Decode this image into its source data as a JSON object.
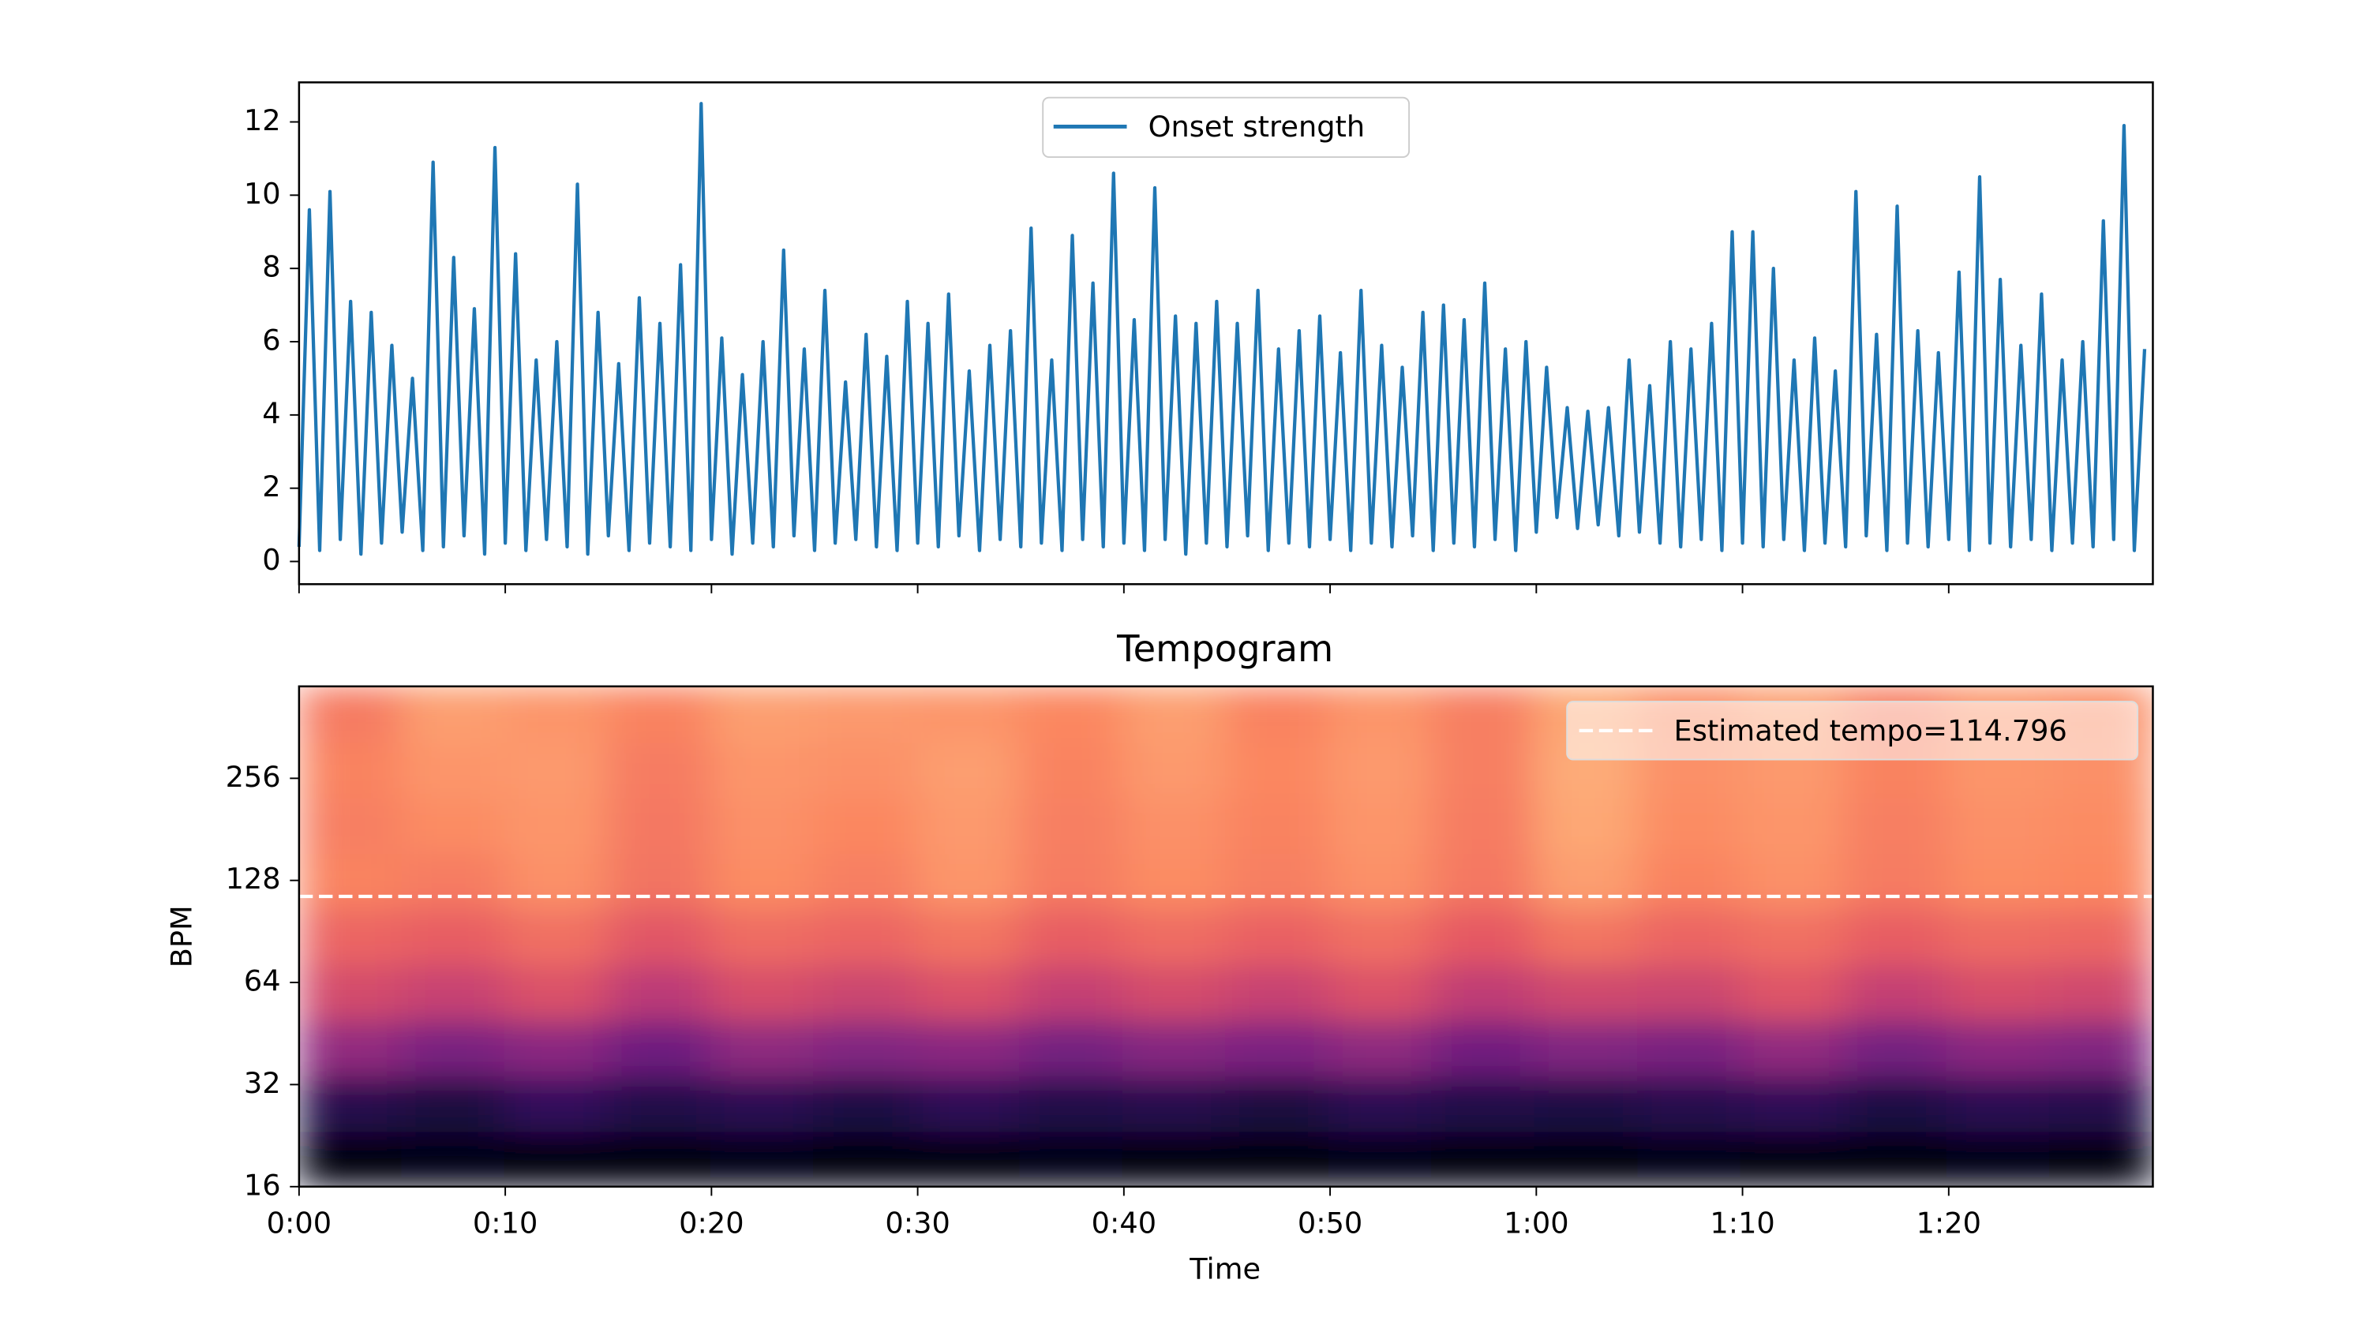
{
  "chart_data": [
    {
      "type": "line",
      "x": [
        0,
        0.5,
        1,
        1.5,
        2,
        2.5,
        3,
        3.5,
        4,
        4.5,
        5,
        5.5,
        6,
        6.5,
        7,
        7.5,
        8,
        8.5,
        9,
        9.5,
        10,
        10.5,
        11,
        11.5,
        12,
        12.5,
        13,
        13.5,
        14,
        14.5,
        15,
        15.5,
        16,
        16.5,
        17,
        17.5,
        18,
        18.5,
        19,
        19.5,
        20,
        20.5,
        21,
        21.5,
        22,
        22.5,
        23,
        23.5,
        24,
        24.5,
        25,
        25.5,
        26,
        26.5,
        27,
        27.5,
        28,
        28.5,
        29,
        29.5,
        30,
        30.5,
        31,
        31.5,
        32,
        32.5,
        33,
        33.5,
        34,
        34.5,
        35,
        35.5,
        36,
        36.5,
        37,
        37.5,
        38,
        38.5,
        39,
        39.5,
        40,
        40.5,
        41,
        41.5,
        42,
        42.5,
        43,
        43.5,
        44,
        44.5,
        45,
        45.5,
        46,
        46.5,
        47,
        47.5,
        48,
        48.5,
        49,
        49.5,
        50,
        50.5,
        51,
        51.5,
        52,
        52.5,
        53,
        53.5,
        54,
        54.5,
        55,
        55.5,
        56,
        56.5,
        57,
        57.5,
        58,
        58.5,
        59,
        59.5,
        60,
        60.5,
        61,
        61.5,
        62,
        62.5,
        63,
        63.5,
        64,
        64.5,
        65,
        65.5,
        66,
        66.5,
        67,
        67.5,
        68,
        68.5,
        69,
        69.5,
        70,
        70.5,
        71,
        71.5,
        72,
        72.5,
        73,
        73.5,
        74,
        74.5,
        75,
        75.5,
        76,
        76.5,
        77,
        77.5,
        78,
        78.5,
        79,
        79.5,
        80,
        80.5,
        81,
        81.5,
        82,
        82.5,
        83,
        83.5,
        84,
        84.5,
        85,
        85.5,
        86,
        86.5,
        87,
        87.5,
        88,
        88.5,
        89,
        89.5
      ],
      "series": [
        {
          "name": "Onset strength",
          "color": "#1f77b4",
          "values": [
            0.4,
            9.6,
            0.3,
            10.1,
            0.6,
            7.1,
            0.2,
            6.8,
            0.5,
            5.9,
            0.8,
            5.0,
            0.3,
            10.9,
            0.4,
            8.3,
            0.7,
            6.9,
            0.2,
            11.3,
            0.5,
            8.4,
            0.3,
            5.5,
            0.6,
            6.0,
            0.4,
            10.3,
            0.2,
            6.8,
            0.7,
            5.4,
            0.3,
            7.2,
            0.5,
            6.5,
            0.4,
            8.1,
            0.3,
            12.5,
            0.6,
            6.1,
            0.2,
            5.1,
            0.5,
            6.0,
            0.4,
            8.5,
            0.7,
            5.8,
            0.3,
            7.4,
            0.5,
            4.9,
            0.6,
            6.2,
            0.4,
            5.6,
            0.3,
            7.1,
            0.5,
            6.5,
            0.4,
            7.3,
            0.7,
            5.2,
            0.3,
            5.9,
            0.6,
            6.3,
            0.4,
            9.1,
            0.5,
            5.5,
            0.3,
            8.9,
            0.6,
            7.6,
            0.4,
            10.6,
            0.5,
            6.6,
            0.3,
            10.2,
            0.6,
            6.7,
            0.2,
            6.5,
            0.5,
            7.1,
            0.4,
            6.5,
            0.7,
            7.4,
            0.3,
            5.8,
            0.5,
            6.3,
            0.4,
            6.7,
            0.6,
            5.7,
            0.3,
            7.4,
            0.5,
            5.9,
            0.4,
            5.3,
            0.7,
            6.8,
            0.3,
            7.0,
            0.5,
            6.6,
            0.4,
            7.6,
            0.6,
            5.8,
            0.3,
            6.0,
            0.8,
            5.3,
            1.2,
            4.2,
            0.9,
            4.1,
            1.0,
            4.2,
            0.7,
            5.5,
            0.8,
            4.8,
            0.5,
            6.0,
            0.4,
            5.8,
            0.6,
            6.5,
            0.3,
            9.0,
            0.5,
            9.0,
            0.4,
            8.0,
            0.6,
            5.5,
            0.3,
            6.1,
            0.5,
            5.2,
            0.4,
            10.1,
            0.7,
            6.2,
            0.3,
            9.7,
            0.5,
            6.3,
            0.4,
            5.7,
            0.6,
            7.9,
            0.3,
            10.5,
            0.5,
            7.7,
            0.4,
            5.9,
            0.6,
            7.3,
            0.3,
            5.5,
            0.5,
            6.0,
            0.4,
            9.3,
            0.6,
            11.9,
            0.3,
            5.8
          ]
        }
      ],
      "xlim": [
        0,
        89.9
      ],
      "xticks": [
        0,
        10,
        20,
        30,
        40,
        50,
        60,
        70,
        80
      ],
      "ylim": [
        -0.62,
        13.08
      ],
      "yticks": [
        0,
        2,
        4,
        6,
        8,
        10,
        12
      ],
      "legend": "upper center"
    },
    {
      "type": "heatmap",
      "title": "Tempogram",
      "x_label": "Time",
      "y_label": "BPM",
      "xlim": [
        0,
        89.9
      ],
      "xticks": [
        {
          "value": 0,
          "label": "0:00"
        },
        {
          "value": 10,
          "label": "0:10"
        },
        {
          "value": 20,
          "label": "0:20"
        },
        {
          "value": 30,
          "label": "0:30"
        },
        {
          "value": 40,
          "label": "0:40"
        },
        {
          "value": 50,
          "label": "0:50"
        },
        {
          "value": 60,
          "label": "1:00"
        },
        {
          "value": 70,
          "label": "1:10"
        },
        {
          "value": 80,
          "label": "1:20"
        }
      ],
      "ylim": [
        16,
        478
      ],
      "yscale": "log2",
      "yticks": [
        16,
        32,
        64,
        128,
        256
      ],
      "colormap": "magma",
      "zlim": [
        0,
        1
      ],
      "z": [
        [
          0.02,
          0.03,
          0.02,
          0.02,
          0.03,
          0.02,
          0.02,
          0.03,
          0.02,
          0.02,
          0.03,
          0.02,
          0.02,
          0.03,
          0.02,
          0.02,
          0.03,
          0.02
        ],
        [
          0.15,
          0.12,
          0.18,
          0.14,
          0.16,
          0.13,
          0.17,
          0.14,
          0.15,
          0.12,
          0.16,
          0.14,
          0.13,
          0.15,
          0.17,
          0.13,
          0.16,
          0.15
        ],
        [
          0.42,
          0.36,
          0.4,
          0.33,
          0.41,
          0.38,
          0.4,
          0.35,
          0.39,
          0.37,
          0.41,
          0.34,
          0.38,
          0.36,
          0.42,
          0.35,
          0.4,
          0.38
        ],
        [
          0.58,
          0.55,
          0.6,
          0.52,
          0.59,
          0.56,
          0.6,
          0.54,
          0.58,
          0.55,
          0.6,
          0.53,
          0.57,
          0.56,
          0.61,
          0.54,
          0.59,
          0.57
        ],
        [
          0.66,
          0.64,
          0.69,
          0.62,
          0.68,
          0.66,
          0.7,
          0.64,
          0.68,
          0.65,
          0.69,
          0.63,
          0.7,
          0.66,
          0.69,
          0.64,
          0.68,
          0.67
        ],
        [
          0.74,
          0.72,
          0.77,
          0.7,
          0.76,
          0.73,
          0.78,
          0.72,
          0.76,
          0.73,
          0.77,
          0.71,
          0.8,
          0.74,
          0.77,
          0.72,
          0.76,
          0.75
        ],
        [
          0.73,
          0.76,
          0.78,
          0.71,
          0.77,
          0.75,
          0.79,
          0.73,
          0.77,
          0.74,
          0.78,
          0.72,
          0.82,
          0.76,
          0.78,
          0.73,
          0.77,
          0.76
        ],
        [
          0.74,
          0.78,
          0.79,
          0.72,
          0.78,
          0.77,
          0.8,
          0.74,
          0.79,
          0.75,
          0.79,
          0.73,
          0.83,
          0.77,
          0.79,
          0.74,
          0.78,
          0.77
        ],
        [
          0.72,
          0.8,
          0.78,
          0.74,
          0.8,
          0.79,
          0.78,
          0.75,
          0.8,
          0.74,
          0.78,
          0.73,
          0.82,
          0.76,
          0.8,
          0.73,
          0.78,
          0.76
        ]
      ],
      "hlines": [
        {
          "name": "Estimated tempo=114.796",
          "value": 114.796,
          "color": "#ffffff",
          "style": "dashed"
        }
      ],
      "legend": "upper right"
    }
  ]
}
